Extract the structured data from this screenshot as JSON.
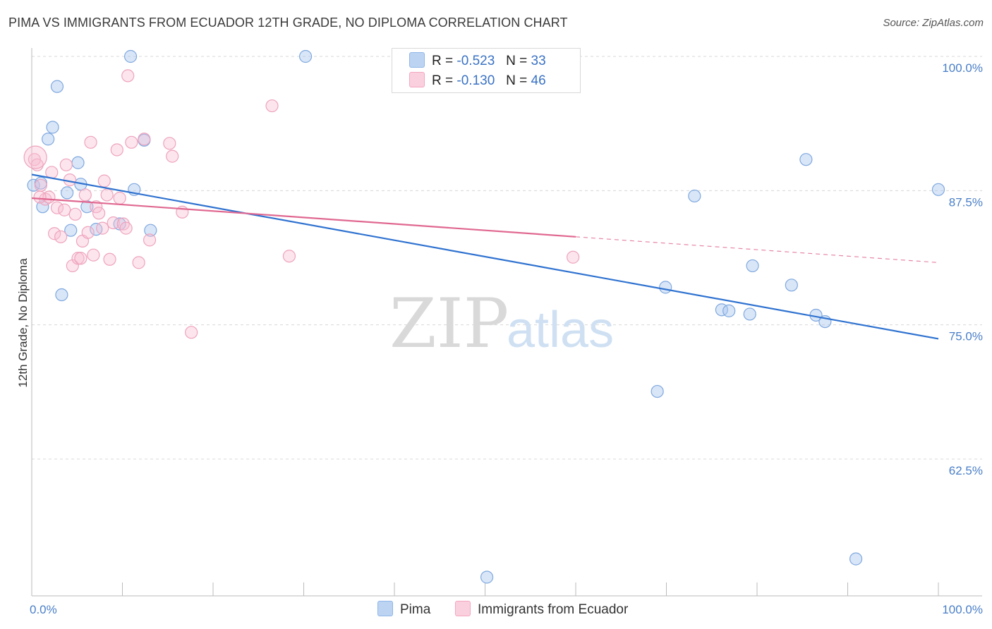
{
  "title": "PIMA VS IMMIGRANTS FROM ECUADOR 12TH GRADE, NO DIPLOMA CORRELATION CHART",
  "source": "Source: ZipAtlas.com",
  "watermark": {
    "zip": "ZIP",
    "atlas": "atlas"
  },
  "colors": {
    "pima": "#8fb6e8",
    "pima_line": "#2f72d0",
    "ecuador": "#f4a6bf",
    "ecuador_line": "#e06890",
    "tick": "#4a7fc8"
  },
  "legend_top": {
    "pima": {
      "r_label": "R =",
      "r_value": "-0.523",
      "n_label": "N =",
      "n_value": "33"
    },
    "ecuador": {
      "r_label": "R =",
      "r_value": "-0.130",
      "n_label": "N =",
      "n_value": "46"
    }
  },
  "legend_bottom": {
    "pima": "Pima",
    "ecuador": "Immigrants from Ecuador"
  },
  "chart_data": {
    "type": "scatter",
    "title": "PIMA VS IMMIGRANTS FROM ECUADOR 12TH GRADE, NO DIPLOMA CORRELATION CHART",
    "xlabel": "",
    "ylabel": "12th Grade, No Diploma",
    "xlim": [
      0,
      100
    ],
    "ylim": [
      50,
      102
    ],
    "x_tick_labels": [
      "0.0%",
      "100.0%"
    ],
    "y_ticks": [
      62.5,
      75.0,
      87.5,
      100.0
    ],
    "y_tick_labels": [
      "62.5%",
      "75.0%",
      "87.5%",
      "100.0%"
    ],
    "grid": true,
    "legend_position": "top-center",
    "series": [
      {
        "name": "Pima",
        "points": [
          [
            0.2,
            88.0
          ],
          [
            1.0,
            88.2
          ],
          [
            1.2,
            86.0
          ],
          [
            1.8,
            92.3
          ],
          [
            2.3,
            93.4
          ],
          [
            2.8,
            97.2
          ],
          [
            3.3,
            77.8
          ],
          [
            3.9,
            87.3
          ],
          [
            4.3,
            83.8
          ],
          [
            5.1,
            90.1
          ],
          [
            5.4,
            88.1
          ],
          [
            6.1,
            86.0
          ],
          [
            7.1,
            83.9
          ],
          [
            9.7,
            84.4
          ],
          [
            11.3,
            87.6
          ],
          [
            12.4,
            92.2
          ],
          [
            13.1,
            83.8
          ],
          [
            10.9,
            100.0
          ],
          [
            30.2,
            100.0
          ],
          [
            50.2,
            51.5
          ],
          [
            69.0,
            68.8
          ],
          [
            69.9,
            78.5
          ],
          [
            73.1,
            87.0
          ],
          [
            76.1,
            76.4
          ],
          [
            76.9,
            76.3
          ],
          [
            79.2,
            76.0
          ],
          [
            79.5,
            80.5
          ],
          [
            83.8,
            78.7
          ],
          [
            85.4,
            90.4
          ],
          [
            86.5,
            75.9
          ],
          [
            87.5,
            75.3
          ],
          [
            90.9,
            53.2
          ],
          [
            100.0,
            87.6
          ]
        ],
        "trend": {
          "x": [
            0,
            100
          ],
          "y": [
            89.0,
            73.7
          ]
        }
      },
      {
        "name": "Immigrants from Ecuador",
        "points": [
          [
            0.3,
            90.4
          ],
          [
            0.6,
            89.9
          ],
          [
            1.0,
            88.0
          ],
          [
            1.5,
            86.7
          ],
          [
            1.9,
            86.9
          ],
          [
            2.2,
            89.2
          ],
          [
            2.5,
            83.5
          ],
          [
            2.8,
            85.9
          ],
          [
            3.2,
            83.2
          ],
          [
            3.6,
            85.7
          ],
          [
            3.8,
            89.9
          ],
          [
            4.2,
            88.5
          ],
          [
            4.5,
            80.5
          ],
          [
            4.8,
            85.3
          ],
          [
            5.1,
            81.2
          ],
          [
            5.4,
            81.2
          ],
          [
            5.6,
            82.8
          ],
          [
            5.9,
            87.1
          ],
          [
            6.2,
            83.6
          ],
          [
            6.5,
            92.0
          ],
          [
            6.8,
            81.5
          ],
          [
            7.1,
            86.0
          ],
          [
            7.4,
            85.4
          ],
          [
            7.8,
            84.0
          ],
          [
            8.0,
            88.4
          ],
          [
            8.3,
            87.1
          ],
          [
            8.6,
            81.1
          ],
          [
            9.0,
            84.5
          ],
          [
            9.4,
            91.3
          ],
          [
            9.7,
            86.8
          ],
          [
            10.1,
            84.4
          ],
          [
            10.4,
            84.0
          ],
          [
            10.6,
            98.2
          ],
          [
            11.0,
            92.0
          ],
          [
            11.8,
            80.8
          ],
          [
            12.4,
            92.3
          ],
          [
            13.0,
            82.9
          ],
          [
            15.2,
            91.9
          ],
          [
            15.5,
            90.7
          ],
          [
            16.6,
            85.5
          ],
          [
            17.6,
            74.3
          ],
          [
            26.5,
            95.4
          ],
          [
            28.4,
            81.4
          ],
          [
            59.7,
            81.3
          ],
          [
            0.9,
            86.9
          ],
          [
            0.4,
            90.6
          ]
        ],
        "trend": {
          "x": [
            0,
            60
          ],
          "y": [
            86.8,
            83.2
          ]
        },
        "trend_dashed": {
          "x": [
            60,
            100
          ],
          "y": [
            83.2,
            80.8
          ]
        }
      }
    ]
  }
}
